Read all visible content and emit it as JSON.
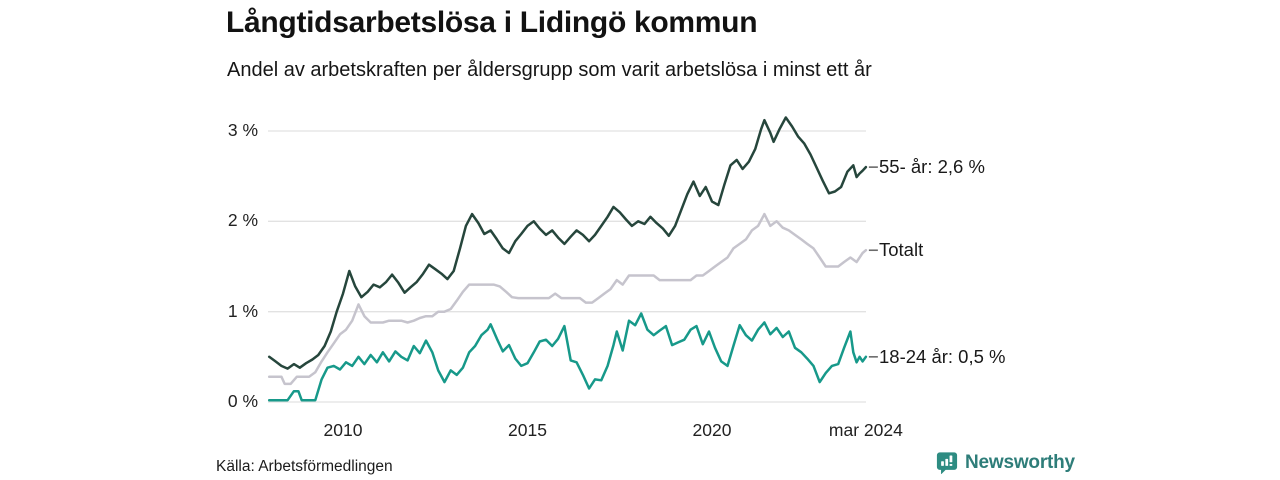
{
  "header": {},
  "footer": {
    "source": "Källa: Arbetsförmedlingen",
    "brand": "Newsworthy"
  },
  "colors": {
    "grid": "#e2e2e2",
    "leader_dash": "#6b6b6b",
    "brand_teal": "#2e8c82",
    "series_55": "#26463c",
    "series_total": "#c6c4cd",
    "series_1824": "#17998a"
  },
  "chart_data": {
    "type": "line",
    "title": "Långtidsarbetslösa i Lidingö kommun",
    "subtitle": "Andel av arbetskraften per åldersgrupp som varit arbetslösa i minst ett år",
    "unit": "%",
    "grid": "horizontal-only",
    "legend_position": "right-inline-labels",
    "x_axis": {
      "range": [
        2008.0,
        2024.25
      ],
      "ticks": [
        {
          "x": 2010,
          "label": "2010"
        },
        {
          "x": 2015,
          "label": "2015"
        },
        {
          "x": 2020,
          "label": "2020"
        },
        {
          "x": 2024.17,
          "label": "mar 2024"
        }
      ]
    },
    "y_axis": {
      "range": [
        0,
        3.3
      ],
      "ticks": [
        {
          "v": 0,
          "label": "0 %"
        },
        {
          "v": 1,
          "label": "1 %"
        },
        {
          "v": 2,
          "label": "2 %"
        },
        {
          "v": 3,
          "label": "3 %"
        }
      ]
    },
    "series": [
      {
        "id": "55-ar",
        "name": "55- år",
        "label": "55- år: 2,6 %",
        "last_value": 2.6,
        "color": "#26463c",
        "z": 1,
        "x": [
          2008.0,
          2008.17,
          2008.33,
          2008.5,
          2008.67,
          2008.83,
          2009.0,
          2009.17,
          2009.33,
          2009.5,
          2009.67,
          2009.83,
          2010.0,
          2010.17,
          2010.33,
          2010.5,
          2010.67,
          2010.83,
          2011.0,
          2011.17,
          2011.33,
          2011.5,
          2011.67,
          2011.83,
          2012.0,
          2012.17,
          2012.33,
          2012.5,
          2012.67,
          2012.83,
          2013.0,
          2013.17,
          2013.33,
          2013.5,
          2013.67,
          2013.83,
          2014.0,
          2014.17,
          2014.33,
          2014.5,
          2014.67,
          2014.83,
          2015.0,
          2015.17,
          2015.33,
          2015.5,
          2015.67,
          2015.83,
          2016.0,
          2016.17,
          2016.33,
          2016.5,
          2016.67,
          2016.83,
          2017.0,
          2017.17,
          2017.33,
          2017.5,
          2017.67,
          2017.83,
          2018.0,
          2018.17,
          2018.33,
          2018.5,
          2018.67,
          2018.83,
          2019.0,
          2019.17,
          2019.33,
          2019.5,
          2019.67,
          2019.83,
          2020.0,
          2020.17,
          2020.33,
          2020.5,
          2020.67,
          2020.83,
          2021.0,
          2021.17,
          2021.33,
          2021.42,
          2021.58,
          2021.67,
          2021.83,
          2022.0,
          2022.17,
          2022.33,
          2022.5,
          2022.67,
          2022.83,
          2023.0,
          2023.17,
          2023.33,
          2023.5,
          2023.67,
          2023.83,
          2023.92,
          2024.0,
          2024.08,
          2024.17
        ],
        "values": [
          0.5,
          0.45,
          0.4,
          0.37,
          0.42,
          0.38,
          0.43,
          0.47,
          0.52,
          0.62,
          0.78,
          1.0,
          1.2,
          1.45,
          1.28,
          1.16,
          1.22,
          1.3,
          1.27,
          1.33,
          1.41,
          1.32,
          1.21,
          1.27,
          1.33,
          1.42,
          1.52,
          1.47,
          1.42,
          1.36,
          1.45,
          1.7,
          1.95,
          2.08,
          1.98,
          1.86,
          1.9,
          1.8,
          1.7,
          1.65,
          1.78,
          1.86,
          1.95,
          2.0,
          1.92,
          1.85,
          1.9,
          1.82,
          1.75,
          1.83,
          1.9,
          1.85,
          1.78,
          1.85,
          1.95,
          2.05,
          2.16,
          2.1,
          2.02,
          1.95,
          2.0,
          1.97,
          2.05,
          1.98,
          1.92,
          1.84,
          1.95,
          2.13,
          2.3,
          2.44,
          2.28,
          2.38,
          2.22,
          2.18,
          2.4,
          2.62,
          2.68,
          2.58,
          2.66,
          2.8,
          3.02,
          3.12,
          2.98,
          2.88,
          3.02,
          3.15,
          3.05,
          2.94,
          2.86,
          2.74,
          2.6,
          2.45,
          2.31,
          2.33,
          2.38,
          2.55,
          2.62,
          2.49,
          2.53,
          2.56,
          2.6
        ]
      },
      {
        "id": "totalt",
        "name": "Totalt",
        "label": "Totalt",
        "last_value": 1.68,
        "color": "#c6c4cd",
        "z": 0,
        "x": [
          2008.0,
          2008.17,
          2008.33,
          2008.42,
          2008.58,
          2008.75,
          2008.92,
          2009.08,
          2009.25,
          2009.42,
          2009.58,
          2009.75,
          2009.92,
          2010.08,
          2010.25,
          2010.42,
          2010.58,
          2010.75,
          2010.92,
          2011.08,
          2011.25,
          2011.42,
          2011.58,
          2011.75,
          2011.92,
          2012.08,
          2012.25,
          2012.42,
          2012.58,
          2012.75,
          2012.92,
          2013.08,
          2013.25,
          2013.42,
          2013.58,
          2013.75,
          2013.92,
          2014.08,
          2014.25,
          2014.42,
          2014.58,
          2014.75,
          2014.92,
          2015.08,
          2015.25,
          2015.42,
          2015.58,
          2015.75,
          2015.92,
          2016.08,
          2016.25,
          2016.42,
          2016.58,
          2016.75,
          2016.92,
          2017.08,
          2017.25,
          2017.42,
          2017.58,
          2017.75,
          2017.92,
          2018.08,
          2018.25,
          2018.42,
          2018.58,
          2018.75,
          2018.92,
          2019.08,
          2019.25,
          2019.42,
          2019.58,
          2019.75,
          2019.92,
          2020.08,
          2020.25,
          2020.42,
          2020.58,
          2020.75,
          2020.92,
          2021.08,
          2021.25,
          2021.42,
          2021.58,
          2021.75,
          2021.92,
          2022.08,
          2022.25,
          2022.42,
          2022.58,
          2022.75,
          2022.92,
          2023.08,
          2023.25,
          2023.42,
          2023.58,
          2023.75,
          2023.92,
          2024.0,
          2024.08,
          2024.17
        ],
        "values": [
          0.28,
          0.28,
          0.28,
          0.2,
          0.2,
          0.28,
          0.28,
          0.28,
          0.33,
          0.45,
          0.55,
          0.65,
          0.75,
          0.8,
          0.9,
          1.08,
          0.95,
          0.88,
          0.88,
          0.88,
          0.9,
          0.9,
          0.9,
          0.88,
          0.9,
          0.93,
          0.95,
          0.95,
          1.0,
          1.0,
          1.03,
          1.12,
          1.22,
          1.3,
          1.3,
          1.3,
          1.3,
          1.3,
          1.28,
          1.22,
          1.16,
          1.15,
          1.15,
          1.15,
          1.15,
          1.15,
          1.15,
          1.2,
          1.15,
          1.15,
          1.15,
          1.15,
          1.1,
          1.1,
          1.15,
          1.2,
          1.25,
          1.35,
          1.3,
          1.4,
          1.4,
          1.4,
          1.4,
          1.4,
          1.35,
          1.35,
          1.35,
          1.35,
          1.35,
          1.35,
          1.4,
          1.4,
          1.45,
          1.5,
          1.55,
          1.6,
          1.7,
          1.75,
          1.8,
          1.9,
          1.95,
          2.08,
          1.95,
          2.0,
          1.93,
          1.9,
          1.85,
          1.8,
          1.75,
          1.7,
          1.6,
          1.5,
          1.5,
          1.5,
          1.55,
          1.6,
          1.55,
          1.6,
          1.65,
          1.68
        ]
      },
      {
        "id": "18-24-ar",
        "name": "18-24 år",
        "label": "18-24 år: 0,5 %",
        "last_value": 0.5,
        "color": "#17998a",
        "z": 2,
        "x": [
          2008.0,
          2008.17,
          2008.33,
          2008.5,
          2008.67,
          2008.79,
          2008.88,
          2009.08,
          2009.25,
          2009.42,
          2009.58,
          2009.75,
          2009.92,
          2010.08,
          2010.25,
          2010.42,
          2010.58,
          2010.75,
          2010.92,
          2011.08,
          2011.25,
          2011.42,
          2011.58,
          2011.75,
          2011.92,
          2012.08,
          2012.25,
          2012.42,
          2012.58,
          2012.75,
          2012.92,
          2013.08,
          2013.25,
          2013.42,
          2013.58,
          2013.75,
          2013.92,
          2014.0,
          2014.17,
          2014.33,
          2014.5,
          2014.67,
          2014.83,
          2015.0,
          2015.17,
          2015.33,
          2015.5,
          2015.67,
          2015.83,
          2016.0,
          2016.17,
          2016.33,
          2016.5,
          2016.67,
          2016.83,
          2017.0,
          2017.17,
          2017.33,
          2017.42,
          2017.58,
          2017.75,
          2017.92,
          2018.08,
          2018.25,
          2018.42,
          2018.58,
          2018.75,
          2018.92,
          2019.08,
          2019.25,
          2019.42,
          2019.58,
          2019.75,
          2019.92,
          2020.08,
          2020.25,
          2020.42,
          2020.58,
          2020.75,
          2020.92,
          2021.08,
          2021.25,
          2021.42,
          2021.58,
          2021.75,
          2021.92,
          2022.08,
          2022.25,
          2022.42,
          2022.58,
          2022.75,
          2022.92,
          2023.08,
          2023.25,
          2023.42,
          2023.58,
          2023.75,
          2023.83,
          2023.92,
          2024.0,
          2024.08,
          2024.17
        ],
        "values": [
          0.02,
          0.02,
          0.02,
          0.02,
          0.12,
          0.12,
          0.02,
          0.02,
          0.02,
          0.25,
          0.38,
          0.4,
          0.36,
          0.44,
          0.4,
          0.5,
          0.42,
          0.52,
          0.44,
          0.55,
          0.45,
          0.56,
          0.5,
          0.46,
          0.62,
          0.54,
          0.68,
          0.55,
          0.35,
          0.22,
          0.35,
          0.3,
          0.38,
          0.55,
          0.62,
          0.74,
          0.8,
          0.86,
          0.7,
          0.56,
          0.63,
          0.48,
          0.4,
          0.43,
          0.55,
          0.67,
          0.69,
          0.62,
          0.7,
          0.84,
          0.46,
          0.44,
          0.3,
          0.15,
          0.25,
          0.24,
          0.4,
          0.63,
          0.78,
          0.57,
          0.9,
          0.85,
          0.98,
          0.8,
          0.74,
          0.79,
          0.84,
          0.63,
          0.66,
          0.69,
          0.8,
          0.84,
          0.64,
          0.78,
          0.6,
          0.45,
          0.4,
          0.62,
          0.85,
          0.74,
          0.68,
          0.8,
          0.88,
          0.75,
          0.82,
          0.72,
          0.78,
          0.6,
          0.55,
          0.48,
          0.4,
          0.22,
          0.32,
          0.4,
          0.42,
          0.6,
          0.78,
          0.55,
          0.44,
          0.5,
          0.45,
          0.5
        ]
      }
    ]
  }
}
